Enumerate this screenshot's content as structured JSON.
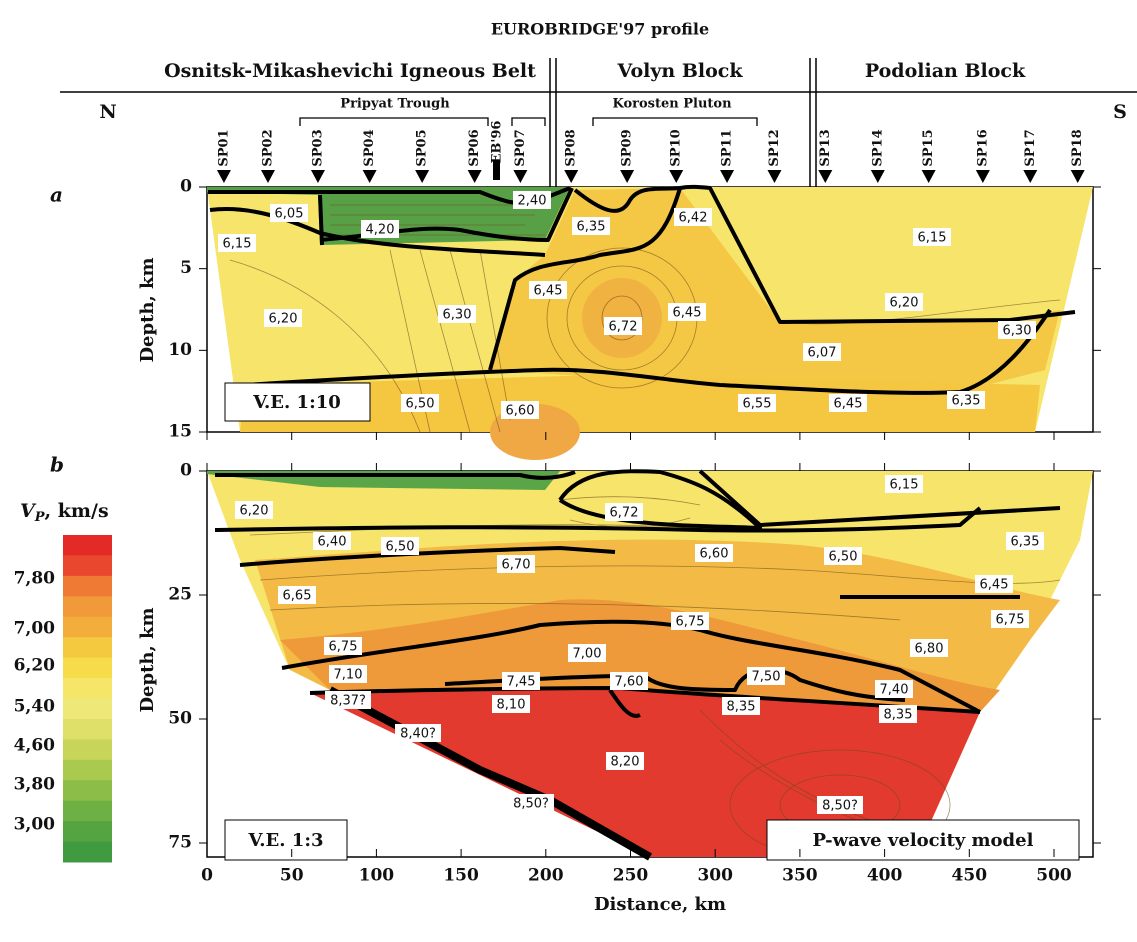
{
  "title": "EUROBRIDGE'97 profile",
  "blocks": [
    "Osnitsk-Mikashevichi Igneous Belt",
    "Volyn Block",
    "Podolian Block"
  ],
  "north": "N",
  "south": "S",
  "sub_units": [
    "Pripyat Trough",
    "Korosten Pluton"
  ],
  "eb96": "EB'96",
  "shotpoints": [
    "SP01",
    "SP02",
    "SP03",
    "SP04",
    "SP05",
    "SP06",
    "SP07",
    "SP08",
    "SP09",
    "SP10",
    "SP11",
    "SP12",
    "SP13",
    "SP14",
    "SP15",
    "SP16",
    "SP17",
    "SP18"
  ],
  "depth_label": "Depth, km",
  "panels": [
    {
      "letter": "a",
      "ve": "V.E. 1:10",
      "depth_lim": [
        0,
        15
      ],
      "depth_ticks": [
        0,
        5,
        10,
        15
      ],
      "velocities": [
        "6,05",
        "4,20",
        "2,40",
        "6,35",
        "6,42",
        "6,15",
        "6,15",
        "6,45",
        "6,20",
        "6,30",
        "6,72",
        "6,45",
        "6,20",
        "6,30",
        "6,07",
        "6,50",
        "6,60",
        "6,55",
        "6,45",
        "6,35"
      ]
    },
    {
      "letter": "b",
      "ve": "V.E. 1:3",
      "depth_lim": [
        0,
        75
      ],
      "depth_ticks": [
        0,
        25,
        50,
        75
      ],
      "velocities": [
        "6,15",
        "6,20",
        "6,72",
        "6,40",
        "6,50",
        "6,35",
        "6,60",
        "6,50",
        "6,70",
        "6,45",
        "6,65",
        "6,75",
        "6,75",
        "6,75",
        "7,00",
        "6,80",
        "7,10",
        "7,45",
        "7,60",
        "7,50",
        "7,40",
        "8,10",
        "8,35",
        "8,35",
        "8,37?",
        "8,40?",
        "8,20",
        "8,50?",
        "8,50?"
      ]
    }
  ],
  "distance": {
    "label": "Distance, km",
    "lim": [
      0,
      500
    ],
    "ticks": [
      0,
      50,
      100,
      150,
      200,
      250,
      300,
      350,
      400,
      450,
      500
    ]
  },
  "legend": {
    "symbol": "V",
    "subscript": "P",
    "unit": ", km/s",
    "labels": [
      "7,80",
      "7,00",
      "6,20",
      "5,40",
      "4,60",
      "3,80",
      "3,00"
    ]
  },
  "model_label": "P-wave velocity model"
}
